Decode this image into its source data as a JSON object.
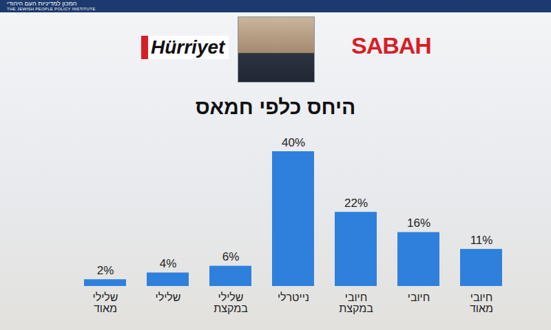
{
  "header": {
    "institute": "המכון למדיניות העם היהודי",
    "institute_en": "THE JEWISH PEOPLE POLICY INSTITUTE",
    "logos": [
      "Hürriyet",
      "SABAH"
    ]
  },
  "chart_data": {
    "type": "bar",
    "title": "היחס כלפי חמאס",
    "categories": [
      "שלילי מאוד",
      "שלילי",
      "שלילי במקצת",
      "נייטרלי",
      "חיובי במקצת",
      "חיובי",
      "חיובי מאוד"
    ],
    "values": [
      2,
      4,
      6,
      40,
      22,
      16,
      11
    ],
    "value_labels": [
      "2%",
      "4%",
      "6%",
      "40%",
      "22%",
      "16%",
      "11%"
    ],
    "color": "#2f80dc",
    "ylim": [
      0,
      40
    ],
    "grid": false,
    "data_labels": true,
    "tick_labels": "x"
  }
}
